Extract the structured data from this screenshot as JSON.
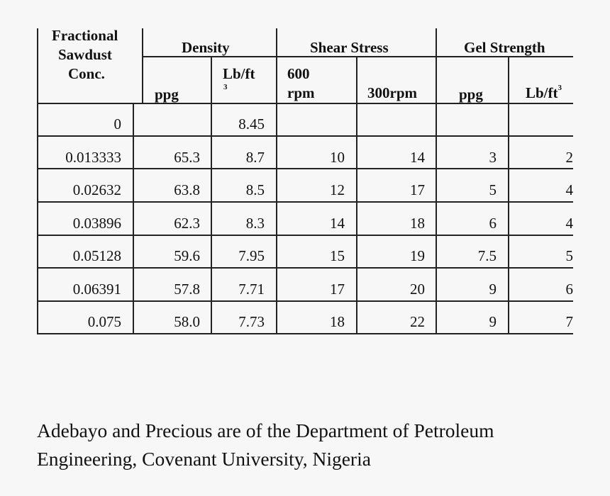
{
  "table": {
    "headers": {
      "fractional_line1": "Fractional",
      "fractional_line2": "Sawdust",
      "fractional_line3": "Conc.",
      "density": "Density",
      "shear_stress": "Shear Stress",
      "gel_strength": "Gel Strength",
      "density_ppg": "ppg",
      "density_lbft_line1": "Lb/ft",
      "density_lbft_line2": "3",
      "shear_600_line1": "600",
      "shear_600_line2": "rpm",
      "shear_300": "300rpm",
      "gel_ppg": "ppg",
      "gel_lbft": "Lb/ft",
      "gel_lbft_sup": "3"
    },
    "rows": [
      [
        "0",
        "",
        "8.45",
        "",
        "",
        "",
        ""
      ],
      [
        "0.013333",
        "65.3",
        "8.7",
        "10",
        "14",
        "3",
        "2"
      ],
      [
        "0.02632",
        "63.8",
        "8.5",
        "12",
        "17",
        "5",
        "4"
      ],
      [
        "0.03896",
        "62.3",
        "8.3",
        "14",
        "18",
        "6",
        "4"
      ],
      [
        "0.05128",
        "59.6",
        "7.95",
        "15",
        "19",
        "7.5",
        "5"
      ],
      [
        "0.06391",
        "57.8",
        "7.71",
        "17",
        "20",
        "9",
        "6"
      ],
      [
        "0.075",
        "58.0",
        "7.73",
        "18",
        "22",
        "9",
        "7"
      ]
    ]
  },
  "caption": {
    "line1": "Adebayo and Precious are of the Department of Petroleum",
    "line2": "Engineering, Covenant University, Nigeria"
  }
}
